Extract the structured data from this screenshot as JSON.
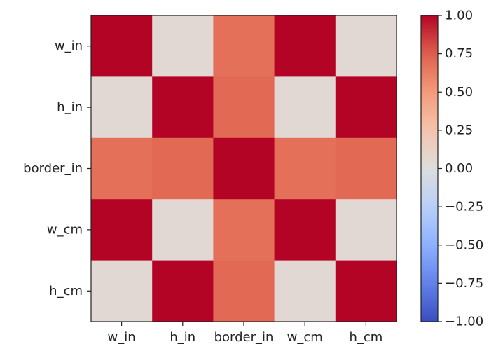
{
  "chart_data": {
    "type": "heatmap",
    "title": "",
    "xlabel": "",
    "ylabel": "",
    "row_labels": [
      "w_in",
      "h_in",
      "border_in",
      "w_cm",
      "h_cm"
    ],
    "col_labels": [
      "w_in",
      "h_in",
      "border_in",
      "w_cm",
      "h_cm"
    ],
    "values": [
      [
        1.0,
        0.05,
        0.68,
        1.0,
        0.05
      ],
      [
        0.05,
        1.0,
        0.71,
        0.05,
        1.0
      ],
      [
        0.68,
        0.71,
        1.0,
        0.68,
        0.71
      ],
      [
        1.0,
        0.05,
        0.68,
        1.0,
        0.05
      ],
      [
        0.05,
        1.0,
        0.71,
        0.05,
        1.0
      ]
    ],
    "colormap": "coolwarm",
    "vmin": -1.0,
    "vmax": 1.0,
    "colorbar": {
      "ticks": [
        1.0,
        0.75,
        0.5,
        0.25,
        0.0,
        -0.25,
        -0.5,
        -0.75,
        -1.0
      ],
      "tick_labels": [
        "1.00",
        "0.75",
        "0.50",
        "0.25",
        "0.00",
        "−0.25",
        "−0.50",
        "−0.75",
        "−1.00"
      ]
    },
    "grid": false
  }
}
